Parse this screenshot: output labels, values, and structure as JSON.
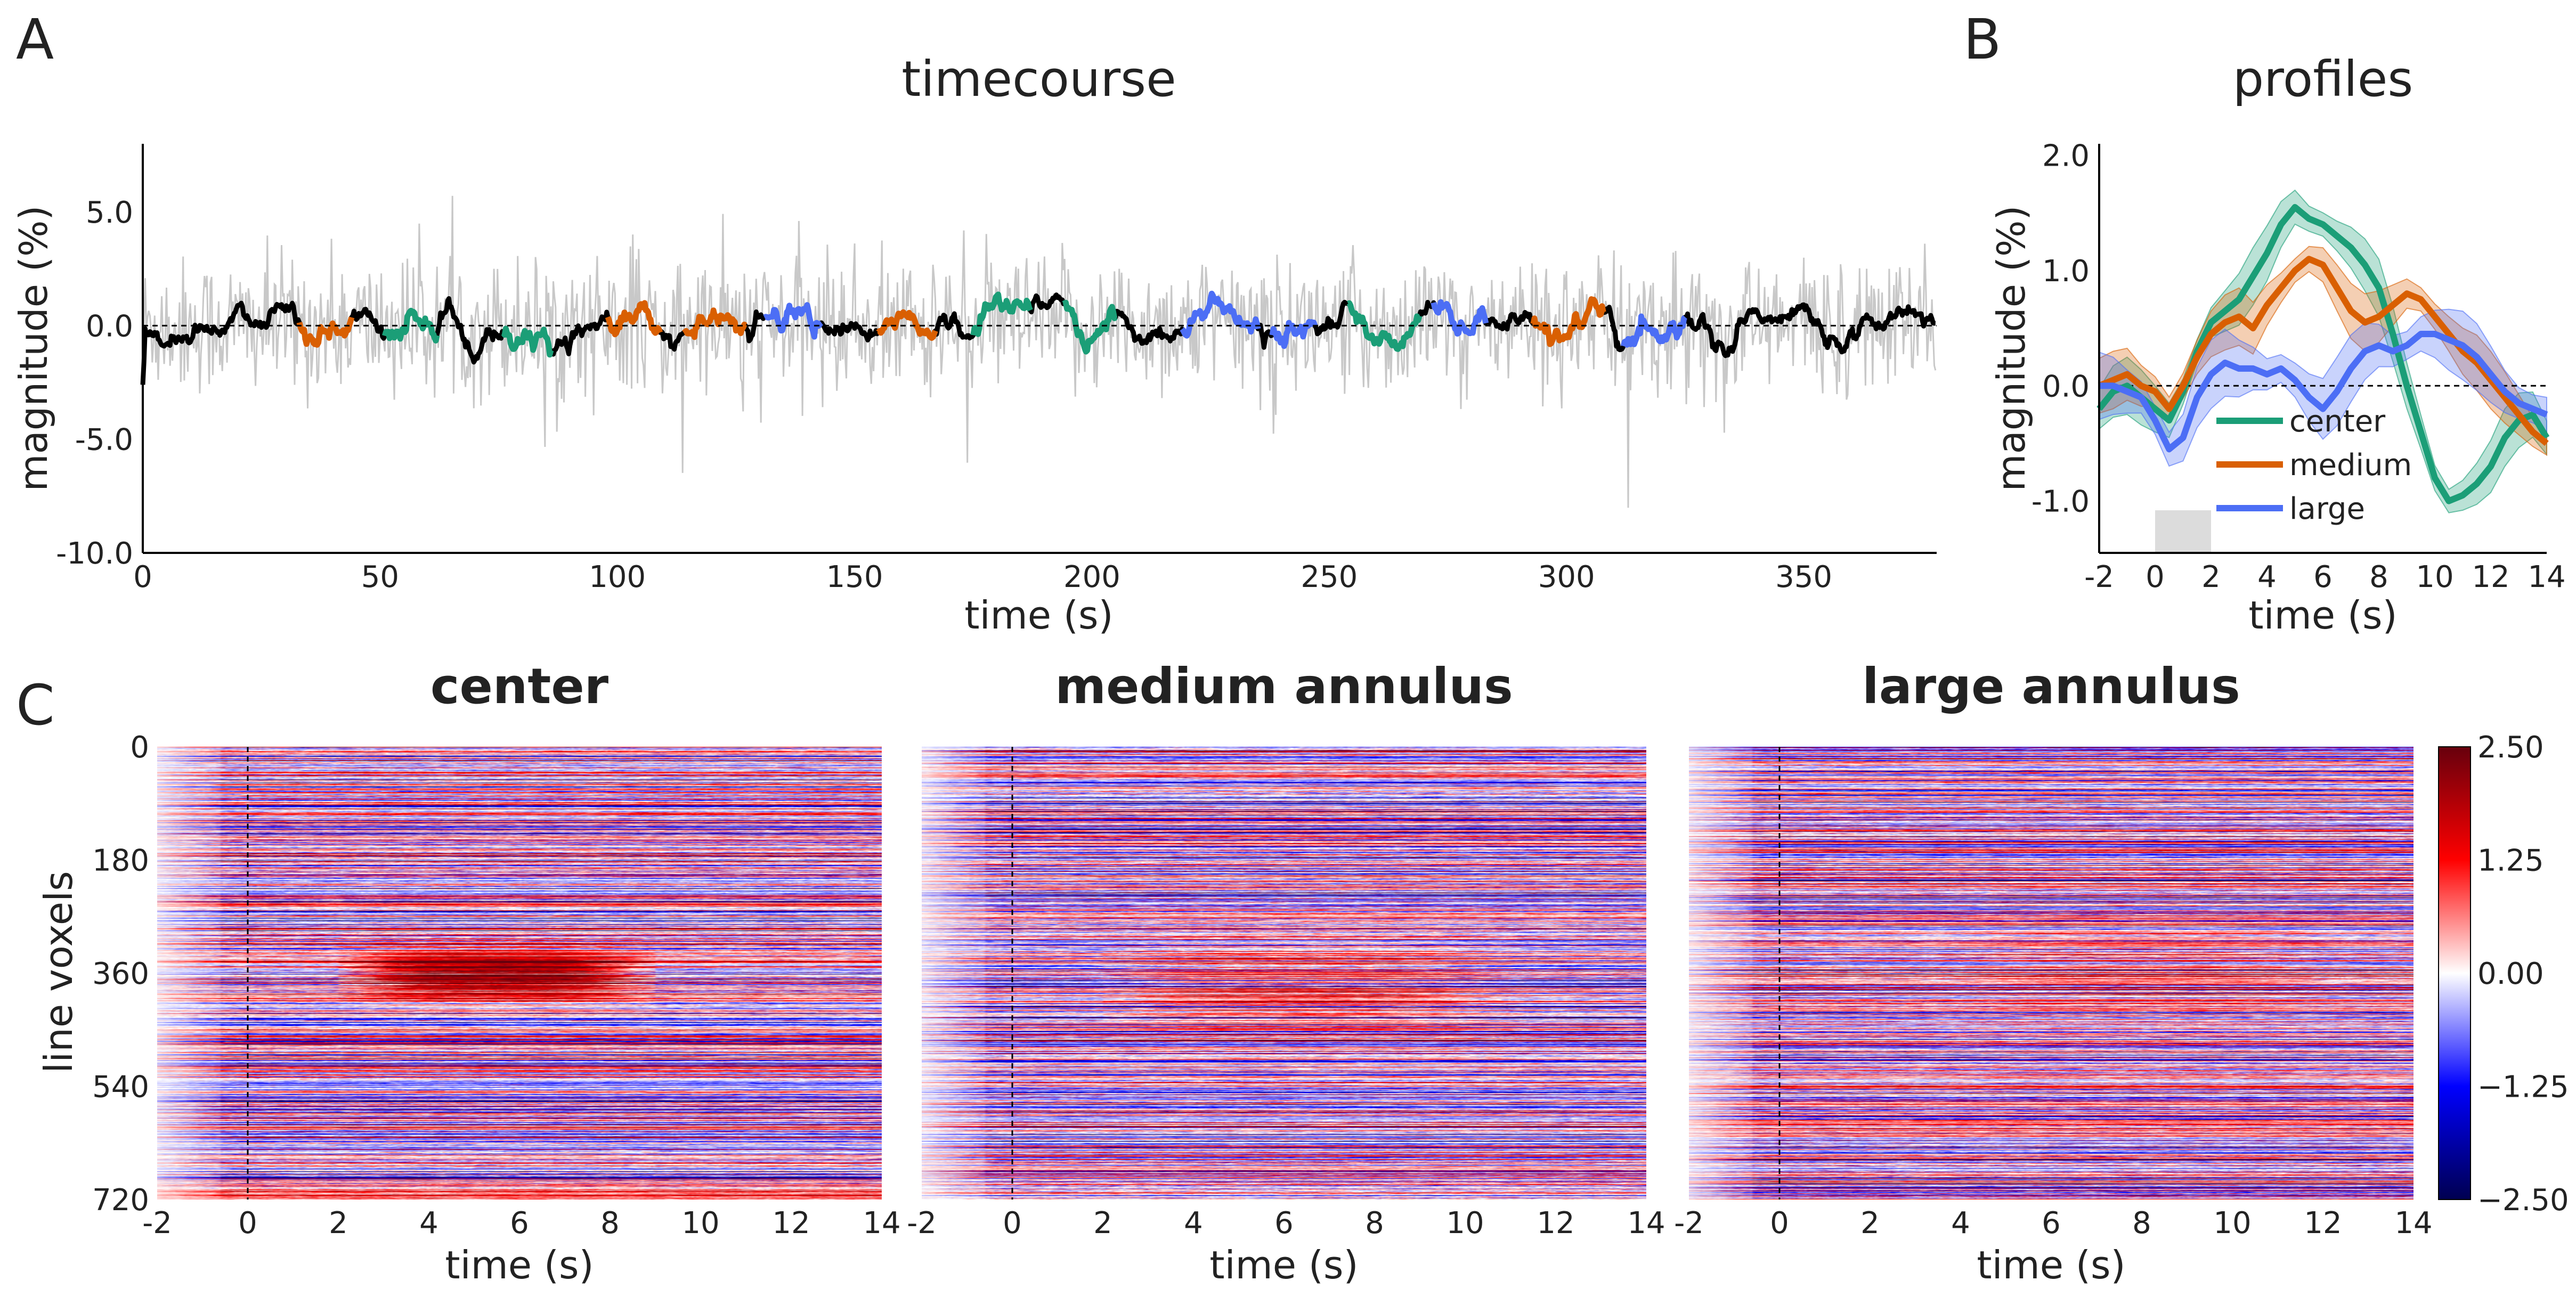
{
  "panels": {
    "a": "A",
    "b": "B",
    "c": "C"
  },
  "colors": {
    "center": "#1b9e77",
    "medium": "#d95f02",
    "large": "#4c6ef5",
    "raw": "#c8c8c8",
    "mean": "#000000"
  },
  "chart_data": [
    {
      "type": "line",
      "title": "timecourse",
      "xlabel": "time (s)",
      "ylabel": "magnitude (%)",
      "xlim": [
        0,
        378
      ],
      "ylim": [
        -10,
        8
      ],
      "xticks": [
        0,
        50,
        100,
        150,
        200,
        250,
        300,
        350
      ],
      "xtick_labels": [
        "0",
        "50",
        "100",
        "150",
        "200",
        "250",
        "300",
        "350"
      ],
      "yticks": [
        -10,
        -5,
        0,
        5
      ],
      "ytick_labels": [
        "-10.0",
        "-5.0",
        "0.0",
        "5.0"
      ],
      "baseline": 0,
      "grid": false,
      "segments": [
        {
          "cond": "center",
          "start": 51,
          "end": 62
        },
        {
          "cond": "medium",
          "start": 33,
          "end": 44
        },
        {
          "cond": "center",
          "start": 76,
          "end": 86
        },
        {
          "cond": "medium",
          "start": 98,
          "end": 109
        },
        {
          "cond": "medium",
          "start": 114,
          "end": 127
        },
        {
          "cond": "large",
          "start": 131,
          "end": 143
        },
        {
          "cond": "medium",
          "start": 155,
          "end": 167
        },
        {
          "cond": "center",
          "start": 175,
          "end": 187
        },
        {
          "cond": "center",
          "start": 194,
          "end": 205
        },
        {
          "cond": "large",
          "start": 219,
          "end": 235
        },
        {
          "cond": "large",
          "start": 238,
          "end": 247
        },
        {
          "cond": "center",
          "start": 254,
          "end": 269
        },
        {
          "cond": "large",
          "start": 272,
          "end": 283
        },
        {
          "cond": "medium",
          "start": 293,
          "end": 308
        },
        {
          "cond": "large",
          "start": 312,
          "end": 325
        }
      ]
    },
    {
      "type": "line",
      "title": "profiles",
      "xlabel": "time (s)",
      "ylabel": "magnitude (%)",
      "xlim": [
        -2,
        14
      ],
      "ylim": [
        -1.45,
        2.1
      ],
      "xticks": [
        -2,
        0,
        2,
        4,
        6,
        8,
        10,
        12,
        14
      ],
      "xtick_labels": [
        "-2",
        "0",
        "2",
        "4",
        "6",
        "8",
        "10",
        "12",
        "14"
      ],
      "yticks": [
        -1,
        0,
        1,
        2
      ],
      "ytick_labels": [
        "-1.0",
        "0.0",
        "1.0",
        "2.0"
      ],
      "stimulus_window": [
        0,
        2
      ],
      "legend": "bottom-center",
      "x": [
        -2,
        -1.5,
        -1,
        -0.5,
        0,
        0.5,
        1,
        1.5,
        2,
        2.5,
        3,
        3.5,
        4,
        4.5,
        5,
        5.5,
        6,
        6.5,
        7,
        7.5,
        8,
        8.5,
        9,
        9.5,
        10,
        10.5,
        11,
        11.5,
        12,
        12.5,
        13,
        13.5,
        14
      ],
      "series": [
        {
          "name": "center",
          "color": "#1b9e77",
          "values": [
            -0.2,
            -0.05,
            0.0,
            -0.1,
            -0.2,
            -0.3,
            -0.05,
            0.3,
            0.55,
            0.65,
            0.75,
            0.95,
            1.15,
            1.4,
            1.55,
            1.45,
            1.4,
            1.3,
            1.2,
            1.05,
            0.85,
            0.45,
            0.0,
            -0.4,
            -0.8,
            -1.0,
            -0.95,
            -0.85,
            -0.7,
            -0.45,
            -0.3,
            -0.25,
            -0.45
          ],
          "spread": 0.25
        },
        {
          "name": "medium",
          "color": "#d95f02",
          "values": [
            0.0,
            0.05,
            0.1,
            0.0,
            -0.05,
            -0.2,
            0.0,
            0.25,
            0.45,
            0.55,
            0.6,
            0.5,
            0.7,
            0.85,
            1.0,
            1.1,
            1.05,
            0.85,
            0.65,
            0.55,
            0.6,
            0.7,
            0.8,
            0.75,
            0.6,
            0.45,
            0.3,
            0.2,
            0.05,
            -0.1,
            -0.25,
            -0.4,
            -0.5
          ],
          "spread": 0.25
        },
        {
          "name": "large",
          "color": "#4c6ef5",
          "values": [
            0.0,
            0.0,
            -0.05,
            -0.1,
            -0.3,
            -0.55,
            -0.45,
            -0.1,
            0.1,
            0.2,
            0.15,
            0.15,
            0.1,
            0.15,
            0.05,
            -0.1,
            -0.2,
            -0.05,
            0.15,
            0.3,
            0.35,
            0.3,
            0.35,
            0.45,
            0.45,
            0.4,
            0.35,
            0.25,
            0.1,
            -0.05,
            -0.15,
            -0.2,
            -0.25
          ],
          "spread": 0.3
        }
      ]
    },
    {
      "type": "heatmap",
      "title": "center",
      "title_color": "#1b9e77",
      "xlabel": "time (s)",
      "ylabel": "line voxels",
      "xlim": [
        -2,
        14
      ],
      "ylim": [
        0,
        720
      ],
      "xticks": [
        -2,
        0,
        2,
        4,
        6,
        8,
        10,
        12,
        14
      ],
      "xtick_labels": [
        "-2",
        "0",
        "2",
        "4",
        "6",
        "8",
        "10",
        "12",
        "14"
      ],
      "yticks": [
        0,
        180,
        360,
        540,
        720
      ],
      "ytick_labels": [
        "0",
        "180",
        "360",
        "540",
        "720"
      ],
      "onset_line": 0,
      "response": {
        "voxel": 362,
        "start": 2,
        "end": 9,
        "peak": 2.4,
        "width": 35
      }
    },
    {
      "type": "heatmap",
      "title": "medium annulus",
      "title_color": "#d95f02",
      "xlabel": "time (s)",
      "xlim": [
        -2,
        14
      ],
      "xticks": [
        -2,
        0,
        2,
        4,
        6,
        8,
        10,
        12,
        14
      ],
      "xtick_labels": [
        "-2",
        "0",
        "2",
        "4",
        "6",
        "8",
        "10",
        "12",
        "14"
      ],
      "onset_line": 0,
      "response": {
        "voxel": 385,
        "start": 2,
        "end": 11,
        "peak": 0.9,
        "width": 70
      }
    },
    {
      "type": "heatmap",
      "title": "large annulus",
      "title_color": "#4c6ef5",
      "xlabel": "time (s)",
      "xlim": [
        -2,
        14
      ],
      "xticks": [
        -2,
        0,
        2,
        4,
        6,
        8,
        10,
        12,
        14
      ],
      "xtick_labels": [
        "-2",
        "0",
        "2",
        "4",
        "6",
        "8",
        "10",
        "12",
        "14"
      ],
      "onset_line": 0,
      "response": {
        "voxel": 355,
        "start": 4,
        "end": 12,
        "peak": 0.4,
        "width": 80
      }
    },
    {
      "type": "colorbar",
      "vmin": -2.5,
      "vmax": 2.5,
      "ticks": [
        2.5,
        1.25,
        0,
        -1.25,
        -2.5
      ],
      "tick_labels": [
        "2.50",
        "1.25",
        "0.00",
        "−1.25",
        "−2.50"
      ]
    }
  ]
}
